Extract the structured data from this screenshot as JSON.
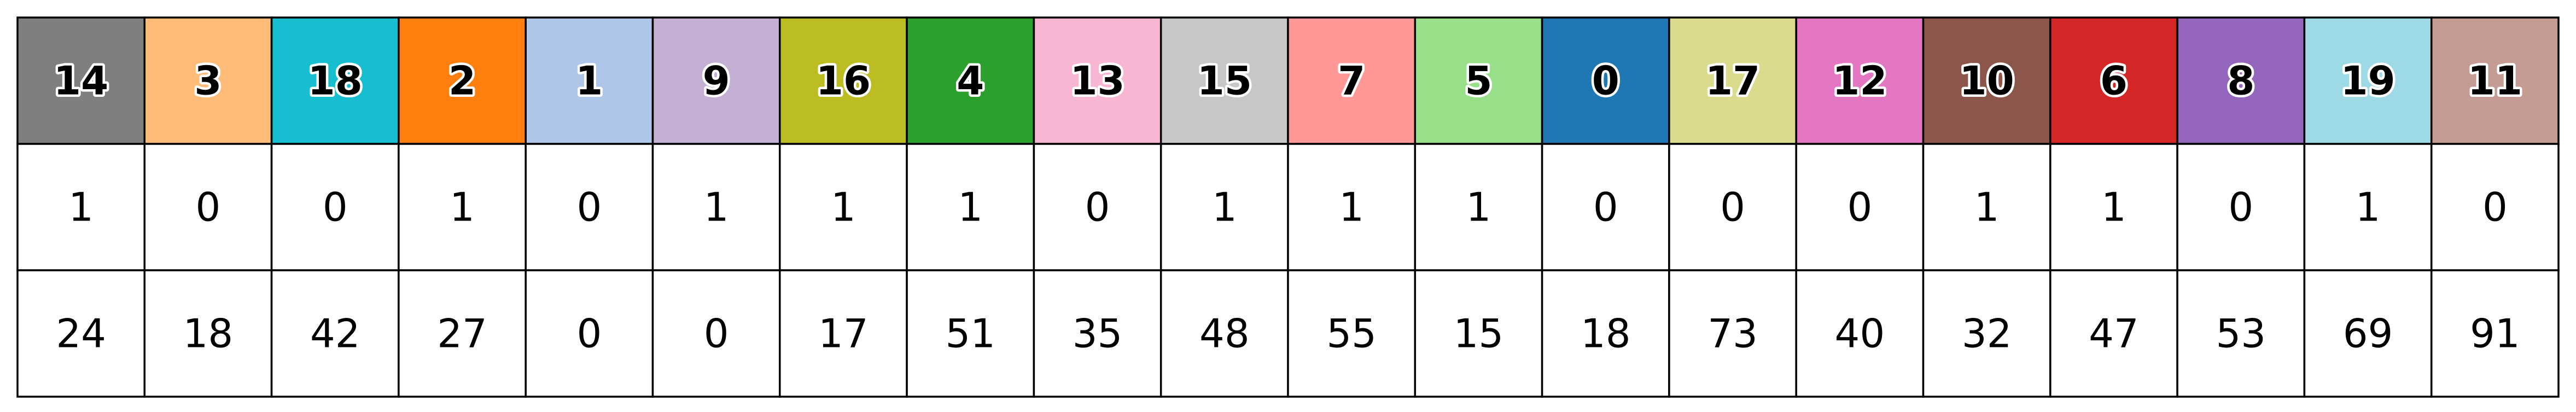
{
  "chart_data": {
    "type": "table",
    "columns": [
      {
        "label": "14",
        "color": "#7f7f7f",
        "row1": "1",
        "row2": "24"
      },
      {
        "label": "3",
        "color": "#ffbb78",
        "row1": "0",
        "row2": "18"
      },
      {
        "label": "18",
        "color": "#17becf",
        "row1": "0",
        "row2": "42"
      },
      {
        "label": "2",
        "color": "#ff7f0e",
        "row1": "1",
        "row2": "27"
      },
      {
        "label": "1",
        "color": "#aec7e8",
        "row1": "0",
        "row2": "0"
      },
      {
        "label": "9",
        "color": "#c5b0d5",
        "row1": "1",
        "row2": "0"
      },
      {
        "label": "16",
        "color": "#bcbd22",
        "row1": "1",
        "row2": "17"
      },
      {
        "label": "4",
        "color": "#2ca02c",
        "row1": "1",
        "row2": "51"
      },
      {
        "label": "13",
        "color": "#f7b6d2",
        "row1": "0",
        "row2": "35"
      },
      {
        "label": "15",
        "color": "#c7c7c7",
        "row1": "1",
        "row2": "48"
      },
      {
        "label": "7",
        "color": "#ff9896",
        "row1": "1",
        "row2": "55"
      },
      {
        "label": "5",
        "color": "#98df8a",
        "row1": "1",
        "row2": "15"
      },
      {
        "label": "0",
        "color": "#1f77b4",
        "row1": "0",
        "row2": "18"
      },
      {
        "label": "17",
        "color": "#dbdb8d",
        "row1": "0",
        "row2": "73"
      },
      {
        "label": "12",
        "color": "#e377c2",
        "row1": "0",
        "row2": "40"
      },
      {
        "label": "10",
        "color": "#8c564b",
        "row1": "1",
        "row2": "32"
      },
      {
        "label": "6",
        "color": "#d62728",
        "row1": "1",
        "row2": "47"
      },
      {
        "label": "8",
        "color": "#9467bd",
        "row1": "0",
        "row2": "53"
      },
      {
        "label": "19",
        "color": "#9edae5",
        "row1": "1",
        "row2": "69"
      },
      {
        "label": "11",
        "color": "#c49c94",
        "row1": "0",
        "row2": "91"
      }
    ]
  }
}
